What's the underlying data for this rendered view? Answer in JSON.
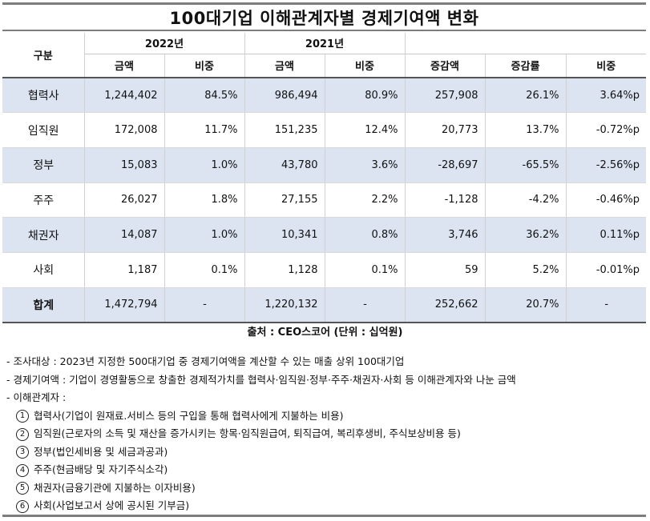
{
  "title": "100대기업 이해관계자별 경제기여액 변화",
  "header": {
    "gubun": "구분",
    "year2022": "2022년",
    "year2021": "2021년",
    "amount": "금액",
    "share": "비중",
    "change_amount": "증감액",
    "change_rate": "증감률",
    "share_change": "비중"
  },
  "rows": [
    {
      "label": "협력사",
      "a22": "1,244,402",
      "s22": "84.5%",
      "a21": "986,494",
      "s21": "80.9%",
      "diff": "257,908",
      "rate": "26.1%",
      "sd": "3.64%p"
    },
    {
      "label": "임직원",
      "a22": "172,008",
      "s22": "11.7%",
      "a21": "151,235",
      "s21": "12.4%",
      "diff": "20,773",
      "rate": "13.7%",
      "sd": "-0.72%p"
    },
    {
      "label": "정부",
      "a22": "15,083",
      "s22": "1.0%",
      "a21": "43,780",
      "s21": "3.6%",
      "diff": "-28,697",
      "rate": "-65.5%",
      "sd": "-2.56%p"
    },
    {
      "label": "주주",
      "a22": "26,027",
      "s22": "1.8%",
      "a21": "27,155",
      "s21": "2.2%",
      "diff": "-1,128",
      "rate": "-4.2%",
      "sd": "-0.46%p"
    },
    {
      "label": "채권자",
      "a22": "14,087",
      "s22": "1.0%",
      "a21": "10,341",
      "s21": "0.8%",
      "diff": "3,746",
      "rate": "36.2%",
      "sd": "0.11%p"
    },
    {
      "label": "사회",
      "a22": "1,187",
      "s22": "0.1%",
      "a21": "1,128",
      "s21": "0.1%",
      "diff": "59",
      "rate": "5.2%",
      "sd": "-0.01%p"
    },
    {
      "label": "합계",
      "a22": "1,472,794",
      "s22": "-",
      "a21": "1,220,132",
      "s21": "-",
      "diff": "252,662",
      "rate": "20.7%",
      "sd": "-"
    }
  ],
  "source": "출처 : CEO스코어 (단위 : 십억원)",
  "notes": [
    "- 조사대상 : 2023년 지정한 500대기업 중 경제기여액을 계산할 수 있는 매출 상위 100대기업",
    "- 경제기여액 : 기업이 경영활동으로 창출한 경제적가치를 협력사·임직원·정부·주주·채권자·사회 등 이해관계자와 나눈 금액",
    "- 이해관계자 :"
  ],
  "stakeholders": [
    {
      "num": "1",
      "text": "협력사(기업이 원재료.서비스 등의 구입을 통해 협력사에게 지불하는 비용)"
    },
    {
      "num": "2",
      "text": "임직원(근로자의 소득 및 재산을 증가시키는 항목·임직원급여, 퇴직급여, 복리후생비, 주식보상비용 등)"
    },
    {
      "num": "3",
      "text": "정부(법인세비용 및 세금과공과)"
    },
    {
      "num": "4",
      "text": "주주(현금배당 및 자기주식소각)"
    },
    {
      "num": "5",
      "text": "채권자(금융기관에 지불하는 이자비용)"
    },
    {
      "num": "6",
      "text": "사회(사업보고서 상에 공시된 기부금)"
    }
  ]
}
